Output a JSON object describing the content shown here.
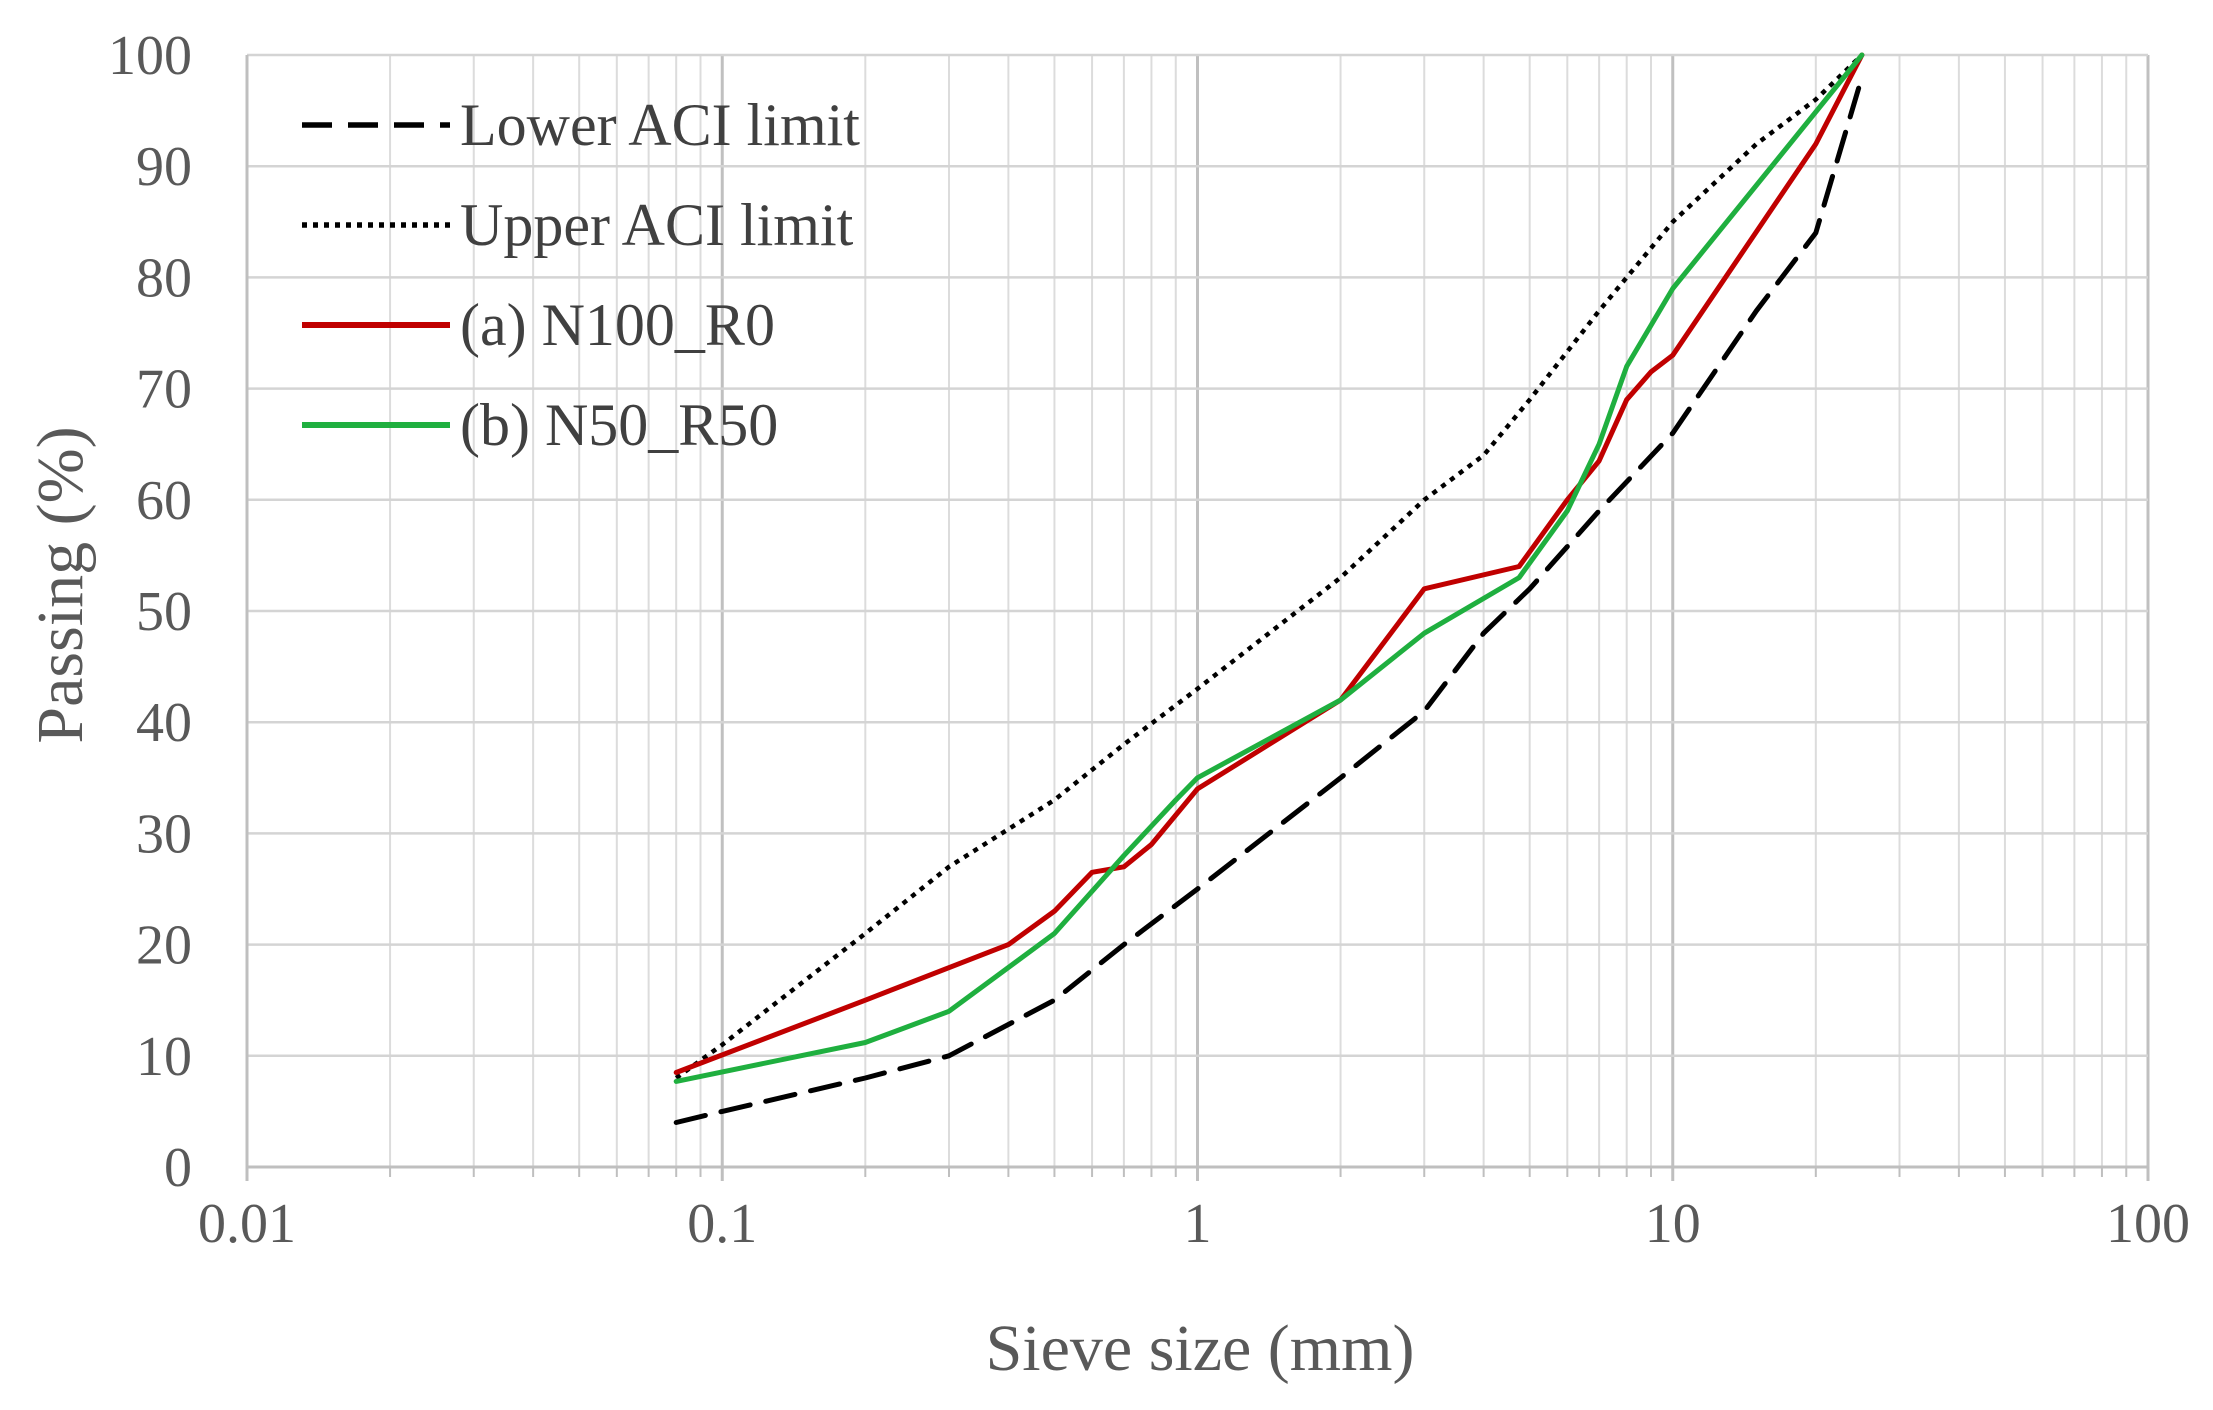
{
  "chart_data": {
    "type": "line",
    "title": "",
    "xlabel": "Sieve size (mm)",
    "ylabel": "Passing (%)",
    "xscale": "log",
    "xlim": [
      0.01,
      100
    ],
    "ylim": [
      0,
      100
    ],
    "xticks": [
      0.01,
      0.1,
      1,
      10,
      100
    ],
    "xtick_labels": [
      "0.01",
      "0.1",
      "1",
      "10",
      "100"
    ],
    "yticks": [
      0,
      10,
      20,
      30,
      40,
      50,
      60,
      70,
      80,
      90,
      100
    ],
    "ytick_labels": [
      "0",
      "10",
      "20",
      "30",
      "40",
      "50",
      "60",
      "70",
      "80",
      "90",
      "100"
    ],
    "grid": true,
    "legend_position": "top-left",
    "series": [
      {
        "name": "Lower ACI limit",
        "color": "#000000",
        "style": "dashed",
        "x": [
          0.08,
          0.1,
          0.2,
          0.3,
          0.5,
          0.7,
          1,
          2,
          3,
          4,
          5,
          7,
          10,
          15,
          20,
          25
        ],
        "y": [
          4,
          5,
          8,
          10,
          15,
          20,
          25,
          35,
          41,
          48,
          52,
          59,
          66,
          77,
          84,
          98
        ]
      },
      {
        "name": "Upper ACI limit",
        "color": "#000000",
        "style": "dotted",
        "x": [
          0.08,
          0.1,
          0.2,
          0.3,
          0.5,
          0.7,
          1,
          2,
          3,
          4,
          5,
          7,
          10,
          15,
          20,
          25
        ],
        "y": [
          8,
          11,
          21,
          27,
          33,
          38,
          43,
          53,
          60,
          64,
          69,
          77,
          85,
          92,
          96,
          100
        ]
      },
      {
        "name": "(a) N100_R0",
        "color": "#C00000",
        "style": "solid",
        "x": [
          0.08,
          0.2,
          0.4,
          0.5,
          0.6,
          0.7,
          0.8,
          1,
          2,
          3,
          4.75,
          6,
          7,
          8,
          9,
          10,
          20,
          25
        ],
        "y": [
          8.5,
          15,
          20,
          23,
          26.5,
          27,
          29,
          34,
          42,
          52,
          54,
          60,
          63.5,
          69,
          71.5,
          73,
          92,
          100
        ]
      },
      {
        "name": "(b) N50_R50",
        "color": "#1FAF3F",
        "style": "solid",
        "x": [
          0.08,
          0.2,
          0.3,
          0.5,
          0.7,
          0.9,
          1,
          2,
          3,
          4.75,
          6,
          7,
          8,
          10,
          25
        ],
        "y": [
          7.7,
          11.2,
          14,
          21,
          28,
          33,
          35,
          42,
          48,
          53,
          59,
          65,
          72,
          79,
          100
        ]
      }
    ]
  }
}
